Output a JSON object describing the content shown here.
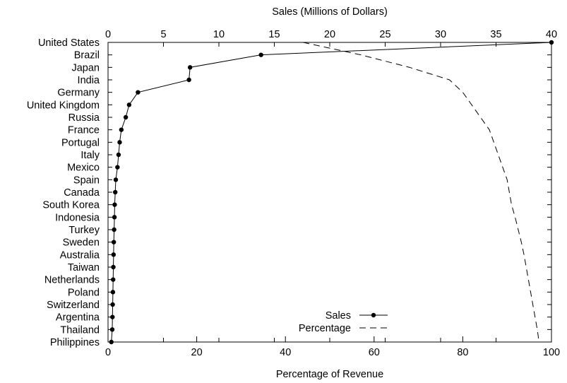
{
  "chart_data": {
    "type": "line",
    "title": "",
    "x_top_label": "Sales (Millions of Dollars)",
    "x_bottom_label": "Percentage of Revenue",
    "x_top_range": [
      0,
      40
    ],
    "x_bottom_range": [
      0,
      100
    ],
    "x_top_ticks": [
      "0",
      "5",
      "10",
      "15",
      "20",
      "25",
      "30",
      "35",
      "40"
    ],
    "x_bottom_ticks": [
      "0",
      "20",
      "40",
      "60",
      "80",
      "100"
    ],
    "categories": [
      "United States",
      "Brazil",
      "Japan",
      "India",
      "Germany",
      "United Kingdom",
      "Russia",
      "France",
      "Portugal",
      "Italy",
      "Mexico",
      "Spain",
      "Canada",
      "South Korea",
      "Indonesia",
      "Turkey",
      "Sweden",
      "Australia",
      "Taiwan",
      "Netherlands",
      "Poland",
      "Switzerland",
      "Argentina",
      "Thailand",
      "Philippines"
    ],
    "grid": false,
    "legend_position": "bottom-right",
    "series": [
      {
        "name": "Sales",
        "axis": "top",
        "style": "solid-with-markers",
        "values": [
          40,
          13.8,
          7.4,
          7.3,
          2.7,
          1.9,
          1.6,
          1.2,
          1.05,
          0.95,
          0.85,
          0.7,
          0.65,
          0.6,
          0.58,
          0.55,
          0.52,
          0.5,
          0.48,
          0.46,
          0.44,
          0.42,
          0.4,
          0.38,
          0.3
        ]
      },
      {
        "name": "Percentage",
        "axis": "bottom",
        "style": "dashed",
        "values": [
          44,
          57,
          68,
          77,
          80,
          82,
          84,
          86,
          87,
          88,
          89,
          90,
          90.5,
          91,
          91.8,
          92.5,
          93.2,
          93.8,
          94.3,
          94.8,
          95.3,
          95.8,
          96.3,
          96.8,
          97.2
        ]
      }
    ]
  }
}
